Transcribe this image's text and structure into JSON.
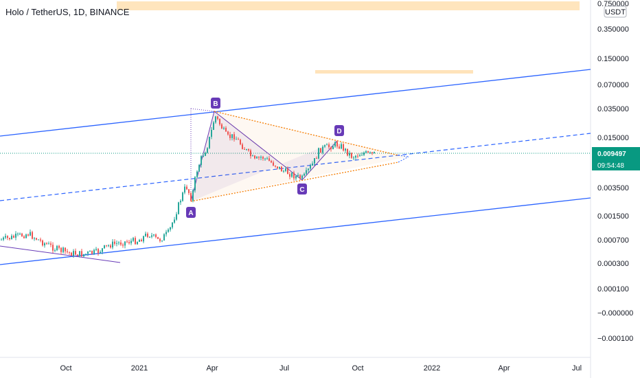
{
  "chart_data": {
    "type": "candlestick",
    "title": "Holo / TetherUS, 1D, BINANCE",
    "currency": "USDT",
    "scale": "log",
    "yticks": [
      "0.750000",
      "0.350000",
      "0.150000",
      "0.070000",
      "0.035000",
      "0.015000",
      "0.003500",
      "0.001500",
      "0.000700",
      "0.000300",
      "0.000100",
      "−0.000000",
      "−0.000100"
    ],
    "xticks": [
      "Oct",
      "2021",
      "Apr",
      "Jul",
      "Oct",
      "2022",
      "Apr",
      "Jul"
    ],
    "last_price": "0.009497",
    "countdown": "09:54:48",
    "points": [
      {
        "label": "A",
        "date": "2021-03-03",
        "price": 0.0024
      },
      {
        "label": "B",
        "date": "2021-03-30",
        "price": 0.0335
      },
      {
        "label": "C",
        "date": "2021-07-21",
        "price": 0.0048
      },
      {
        "label": "D",
        "date": "2021-09-06",
        "price": 0.0122
      }
    ],
    "colors": {
      "up": "#26a69a",
      "down": "#ef5350",
      "channel": "#2962ff",
      "triangle": "#f57c00",
      "pattern": "#673ab7",
      "zone": "#ffe0b2",
      "price_label": "#089981"
    }
  }
}
